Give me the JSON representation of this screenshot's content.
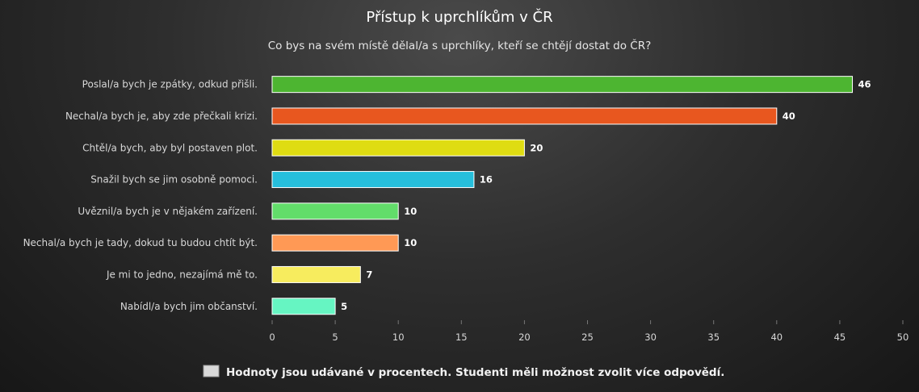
{
  "chart_data": {
    "type": "bar",
    "orientation": "horizontal",
    "title": "Přístup k uprchlíkům v ČR",
    "subtitle": "Co bys na svém místě dělal/a s uprchlíky, kteří se chtějí dostat do ČR?",
    "categories": [
      "Poslal/a bych je zpátky, odkud přišli.",
      "Nechal/a bych je, aby zde přečkali krizi.",
      "Chtěl/a bych, aby byl postaven plot.",
      "Snažil bych se jim osobně pomoci.",
      "Uvěznil/a bych je v nějakém zařízení.",
      "Nechal/a bych je tady, dokud tu budou chtít být.",
      "Je mi to jedno, nezajímá mě to.",
      "Nabídl/a bych jim občanství."
    ],
    "values": [
      46,
      40,
      20,
      16,
      10,
      10,
      7,
      5
    ],
    "colors": [
      "#4db531",
      "#e8571f",
      "#dfdc12",
      "#26bfdc",
      "#62dd6a",
      "#ff9955",
      "#f7ec5e",
      "#66f5c2"
    ],
    "xlim": [
      0,
      50
    ],
    "ticks": [
      0,
      5,
      10,
      15,
      20,
      25,
      30,
      35,
      40,
      45,
      50
    ],
    "grid": false,
    "legend": {
      "position": "bottom",
      "entries": [
        {
          "label": "Hodnoty jsou udávané v procentech. Studenti měli možnost zvolit více odpovědí.",
          "color": "#d9d9d9"
        }
      ]
    }
  }
}
